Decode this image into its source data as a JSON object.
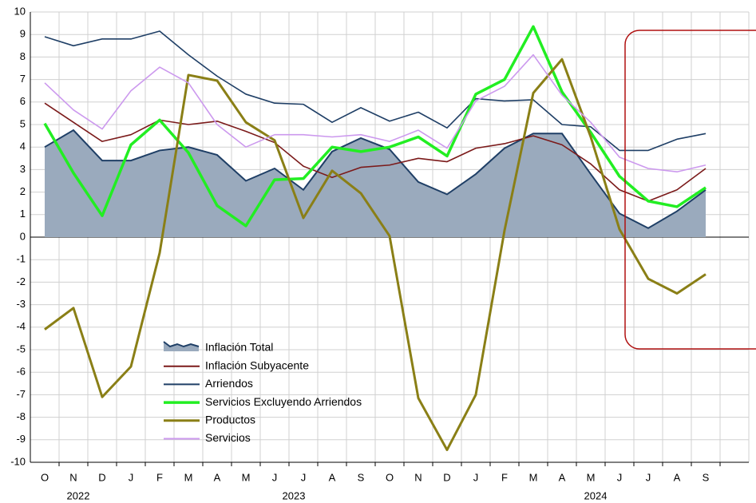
{
  "chart_data": {
    "type": "line",
    "categories": [
      "O",
      "N",
      "D",
      "J",
      "F",
      "M",
      "A",
      "M",
      "J",
      "J",
      "A",
      "S",
      "O",
      "N",
      "D",
      "J",
      "F",
      "M",
      "A",
      "M",
      "J",
      "J",
      "A",
      "S"
    ],
    "year_groups": [
      {
        "label": "2022",
        "count": 3
      },
      {
        "label": "2023",
        "count": 12
      },
      {
        "label": "2024",
        "count": 9
      }
    ],
    "ylim": [
      -10,
      10
    ],
    "yticks": [
      -10,
      -9,
      -8,
      -7,
      -6,
      -5,
      -4,
      -3,
      -2,
      -1,
      0,
      1,
      2,
      3,
      4,
      5,
      6,
      7,
      8,
      9,
      10
    ],
    "grid": true,
    "series": [
      {
        "name": "Inflación Total",
        "kind": "area",
        "color": "#1f3f66",
        "fill": "#9aaabd",
        "values": [
          4.0,
          4.75,
          3.4,
          3.4,
          3.85,
          4.0,
          3.65,
          2.5,
          3.05,
          2.1,
          3.8,
          4.4,
          3.9,
          2.45,
          1.9,
          2.8,
          3.95,
          4.6,
          4.6,
          2.8,
          1.05,
          0.4,
          1.15,
          2.1
        ]
      },
      {
        "name": "Inflación Subyacente",
        "color": "#7b1a1a",
        "values": [
          5.95,
          5.1,
          4.25,
          4.55,
          5.2,
          5.0,
          5.15,
          4.7,
          4.2,
          3.15,
          2.65,
          3.1,
          3.2,
          3.5,
          3.35,
          3.95,
          4.15,
          4.5,
          4.1,
          3.25,
          2.1,
          1.6,
          2.1,
          3.05
        ]
      },
      {
        "name": "Arriendos",
        "color": "#1f3f66",
        "values": [
          8.9,
          8.5,
          8.8,
          8.8,
          9.15,
          8.1,
          7.15,
          6.35,
          5.95,
          5.9,
          5.1,
          5.75,
          5.15,
          5.55,
          4.85,
          6.15,
          6.05,
          6.1,
          5.0,
          4.9,
          3.85,
          3.85,
          4.35,
          4.6
        ]
      },
      {
        "name": "Servicios Excluyendo Arriendos",
        "color": "#22ee22",
        "values": [
          5.05,
          2.85,
          0.95,
          4.1,
          5.2,
          3.75,
          1.4,
          0.5,
          2.55,
          2.6,
          4.0,
          3.8,
          4.0,
          4.45,
          3.6,
          6.35,
          7.0,
          9.35,
          6.45,
          4.65,
          2.7,
          1.6,
          1.35,
          2.2
        ]
      },
      {
        "name": "Productos",
        "color": "#8a7f16",
        "values": [
          -4.1,
          -3.15,
          -7.1,
          -5.75,
          -0.7,
          7.2,
          6.95,
          5.1,
          4.3,
          0.85,
          2.95,
          1.95,
          0.05,
          -7.15,
          -9.45,
          -7.0,
          0.3,
          6.4,
          7.9,
          4.45,
          0.35,
          -1.85,
          -2.5,
          -1.65
        ]
      },
      {
        "name": "Servicios",
        "color": "#cc99ee",
        "values": [
          6.85,
          5.65,
          4.8,
          6.5,
          7.55,
          6.85,
          5.0,
          4.0,
          4.55,
          4.55,
          4.45,
          4.55,
          4.25,
          4.75,
          3.95,
          6.05,
          6.7,
          8.1,
          6.3,
          5.1,
          3.55,
          3.05,
          2.9,
          3.2
        ]
      }
    ]
  }
}
